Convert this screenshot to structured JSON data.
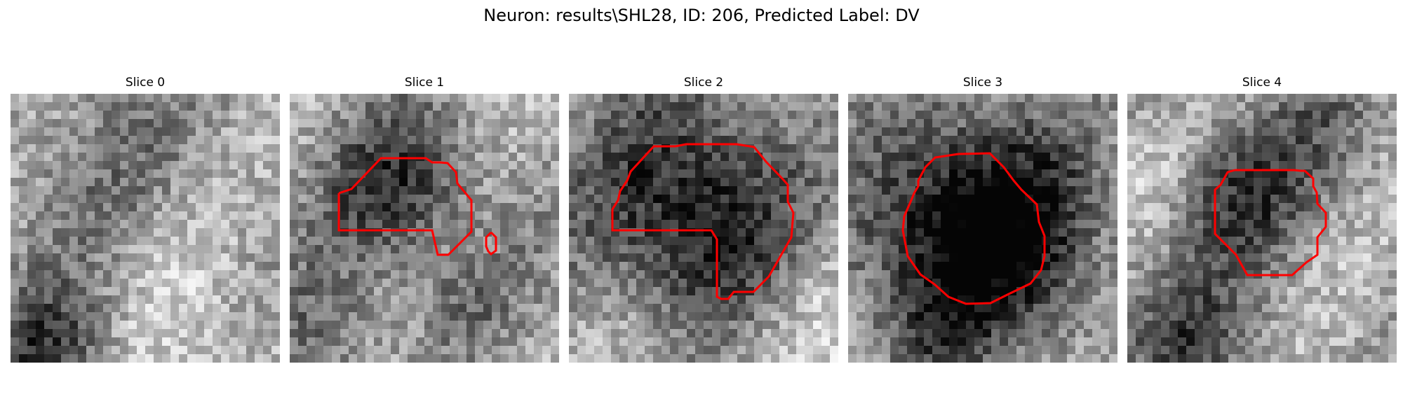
{
  "figure": {
    "title": "Neuron: results\\SHL28, ID: 206, Predicted Label: DV"
  },
  "panels": [
    {
      "title": "Slice 0",
      "has_contour": false
    },
    {
      "title": "Slice 1",
      "has_contour": true
    },
    {
      "title": "Slice 2",
      "has_contour": true
    },
    {
      "title": "Slice 3",
      "has_contour": true
    },
    {
      "title": "Slice 4",
      "has_contour": true
    }
  ],
  "colors": {
    "contour": "#ff0000",
    "colormap": "grayscale"
  }
}
